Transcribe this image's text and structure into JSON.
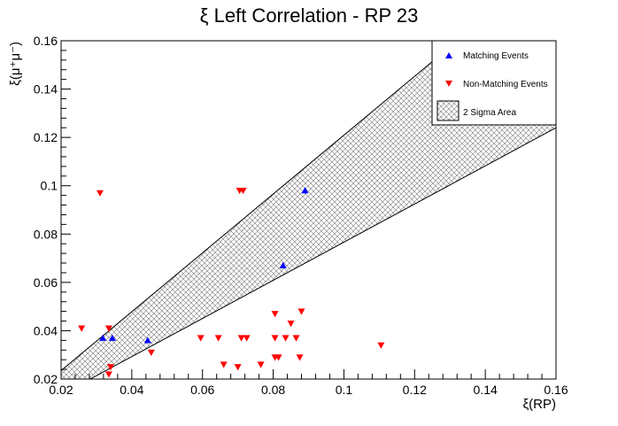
{
  "chart_data": {
    "type": "scatter",
    "title": "ξ Left Correlation - RP 23",
    "xlabel": "ξ(RP)",
    "ylabel": "ξ(μ⁺μ⁻)",
    "xlim": [
      0.02,
      0.16
    ],
    "ylim": [
      0.02,
      0.16
    ],
    "xticks": [
      0.02,
      0.04,
      0.06,
      0.08,
      0.1,
      0.12,
      0.14,
      0.16
    ],
    "yticks": [
      0.02,
      0.04,
      0.06,
      0.08,
      0.1,
      0.12,
      0.14,
      0.16
    ],
    "xtick_labels": [
      "0.02",
      "0.04",
      "0.06",
      "0.08",
      "0.1",
      "0.12",
      "0.14",
      "0.16"
    ],
    "ytick_labels": [
      "0.02",
      "0.04",
      "0.06",
      "0.08",
      "0.1",
      "0.12",
      "0.14",
      "0.16"
    ],
    "band": {
      "name": "2 Sigma Area",
      "upper": [
        [
          0.02,
          0.0235
        ],
        [
          0.16,
          0.194
        ]
      ],
      "lower": [
        [
          0.02,
          0.0135
        ],
        [
          0.16,
          0.124
        ]
      ]
    },
    "series": [
      {
        "name": "Matching Events",
        "marker": "triangle-up",
        "color": "#0000ff",
        "points": [
          [
            0.0318,
            0.037
          ],
          [
            0.0345,
            0.037
          ],
          [
            0.0445,
            0.036
          ],
          [
            0.0828,
            0.067
          ],
          [
            0.089,
            0.098
          ]
        ]
      },
      {
        "name": "Non-Matching Events",
        "marker": "triangle-down",
        "color": "#ff0000",
        "points": [
          [
            0.0258,
            0.041
          ],
          [
            0.031,
            0.097
          ],
          [
            0.0335,
            0.041
          ],
          [
            0.034,
            0.025
          ],
          [
            0.0335,
            0.022
          ],
          [
            0.0455,
            0.031
          ],
          [
            0.0595,
            0.037
          ],
          [
            0.0645,
            0.037
          ],
          [
            0.066,
            0.026
          ],
          [
            0.07,
            0.025
          ],
          [
            0.0705,
            0.098
          ],
          [
            0.0715,
            0.098
          ],
          [
            0.071,
            0.037
          ],
          [
            0.0725,
            0.037
          ],
          [
            0.0765,
            0.026
          ],
          [
            0.0805,
            0.047
          ],
          [
            0.0805,
            0.037
          ],
          [
            0.0805,
            0.029
          ],
          [
            0.0815,
            0.029
          ],
          [
            0.0835,
            0.037
          ],
          [
            0.085,
            0.043
          ],
          [
            0.0865,
            0.037
          ],
          [
            0.0875,
            0.029
          ],
          [
            0.088,
            0.048
          ],
          [
            0.1105,
            0.034
          ]
        ]
      }
    ],
    "legend": {
      "placement": "top-right",
      "entries": [
        "Matching Events",
        "Non-Matching Events",
        "2 Sigma Area"
      ]
    },
    "grid": false
  }
}
